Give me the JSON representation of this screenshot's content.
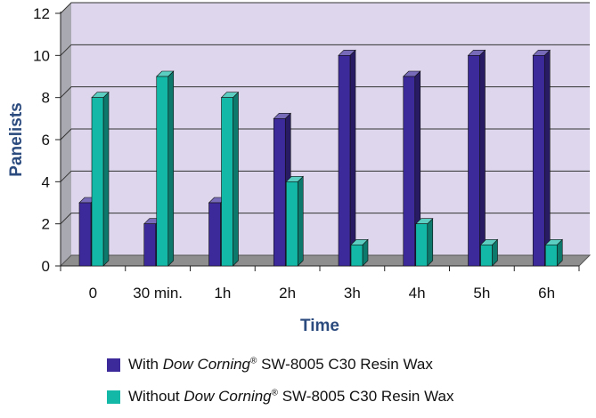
{
  "chart_data": {
    "type": "bar",
    "xlabel": "Time",
    "ylabel": "Panelists",
    "categories": [
      "0",
      "30 min.",
      "1h",
      "2h",
      "3h",
      "4h",
      "5h",
      "6h"
    ],
    "ylim": [
      0,
      12
    ],
    "yticks": [
      0,
      2,
      4,
      6,
      8,
      10,
      12
    ],
    "grid": true,
    "legend_position": "bottom",
    "series": [
      {
        "name": "With Dow Corning® SW-8005 C30 Resin Wax",
        "legend": {
          "before": "With ",
          "brand": "Dow Corning",
          "reg": "®",
          "after": " SW-8005 C30 Resin Wax"
        },
        "color": "#3d2a9a",
        "values": [
          3,
          2,
          3,
          7,
          10,
          9,
          10,
          10
        ]
      },
      {
        "name": "Without Dow Corning® SW-8005 C30 Resin Wax",
        "legend": {
          "before": "Without ",
          "brand": "Dow Corning",
          "reg": "®",
          "after": " SW-8005 C30 Resin Wax"
        },
        "color": "#14b8a6",
        "values": [
          8,
          9,
          8,
          4,
          1,
          2,
          1,
          1
        ]
      }
    ]
  }
}
